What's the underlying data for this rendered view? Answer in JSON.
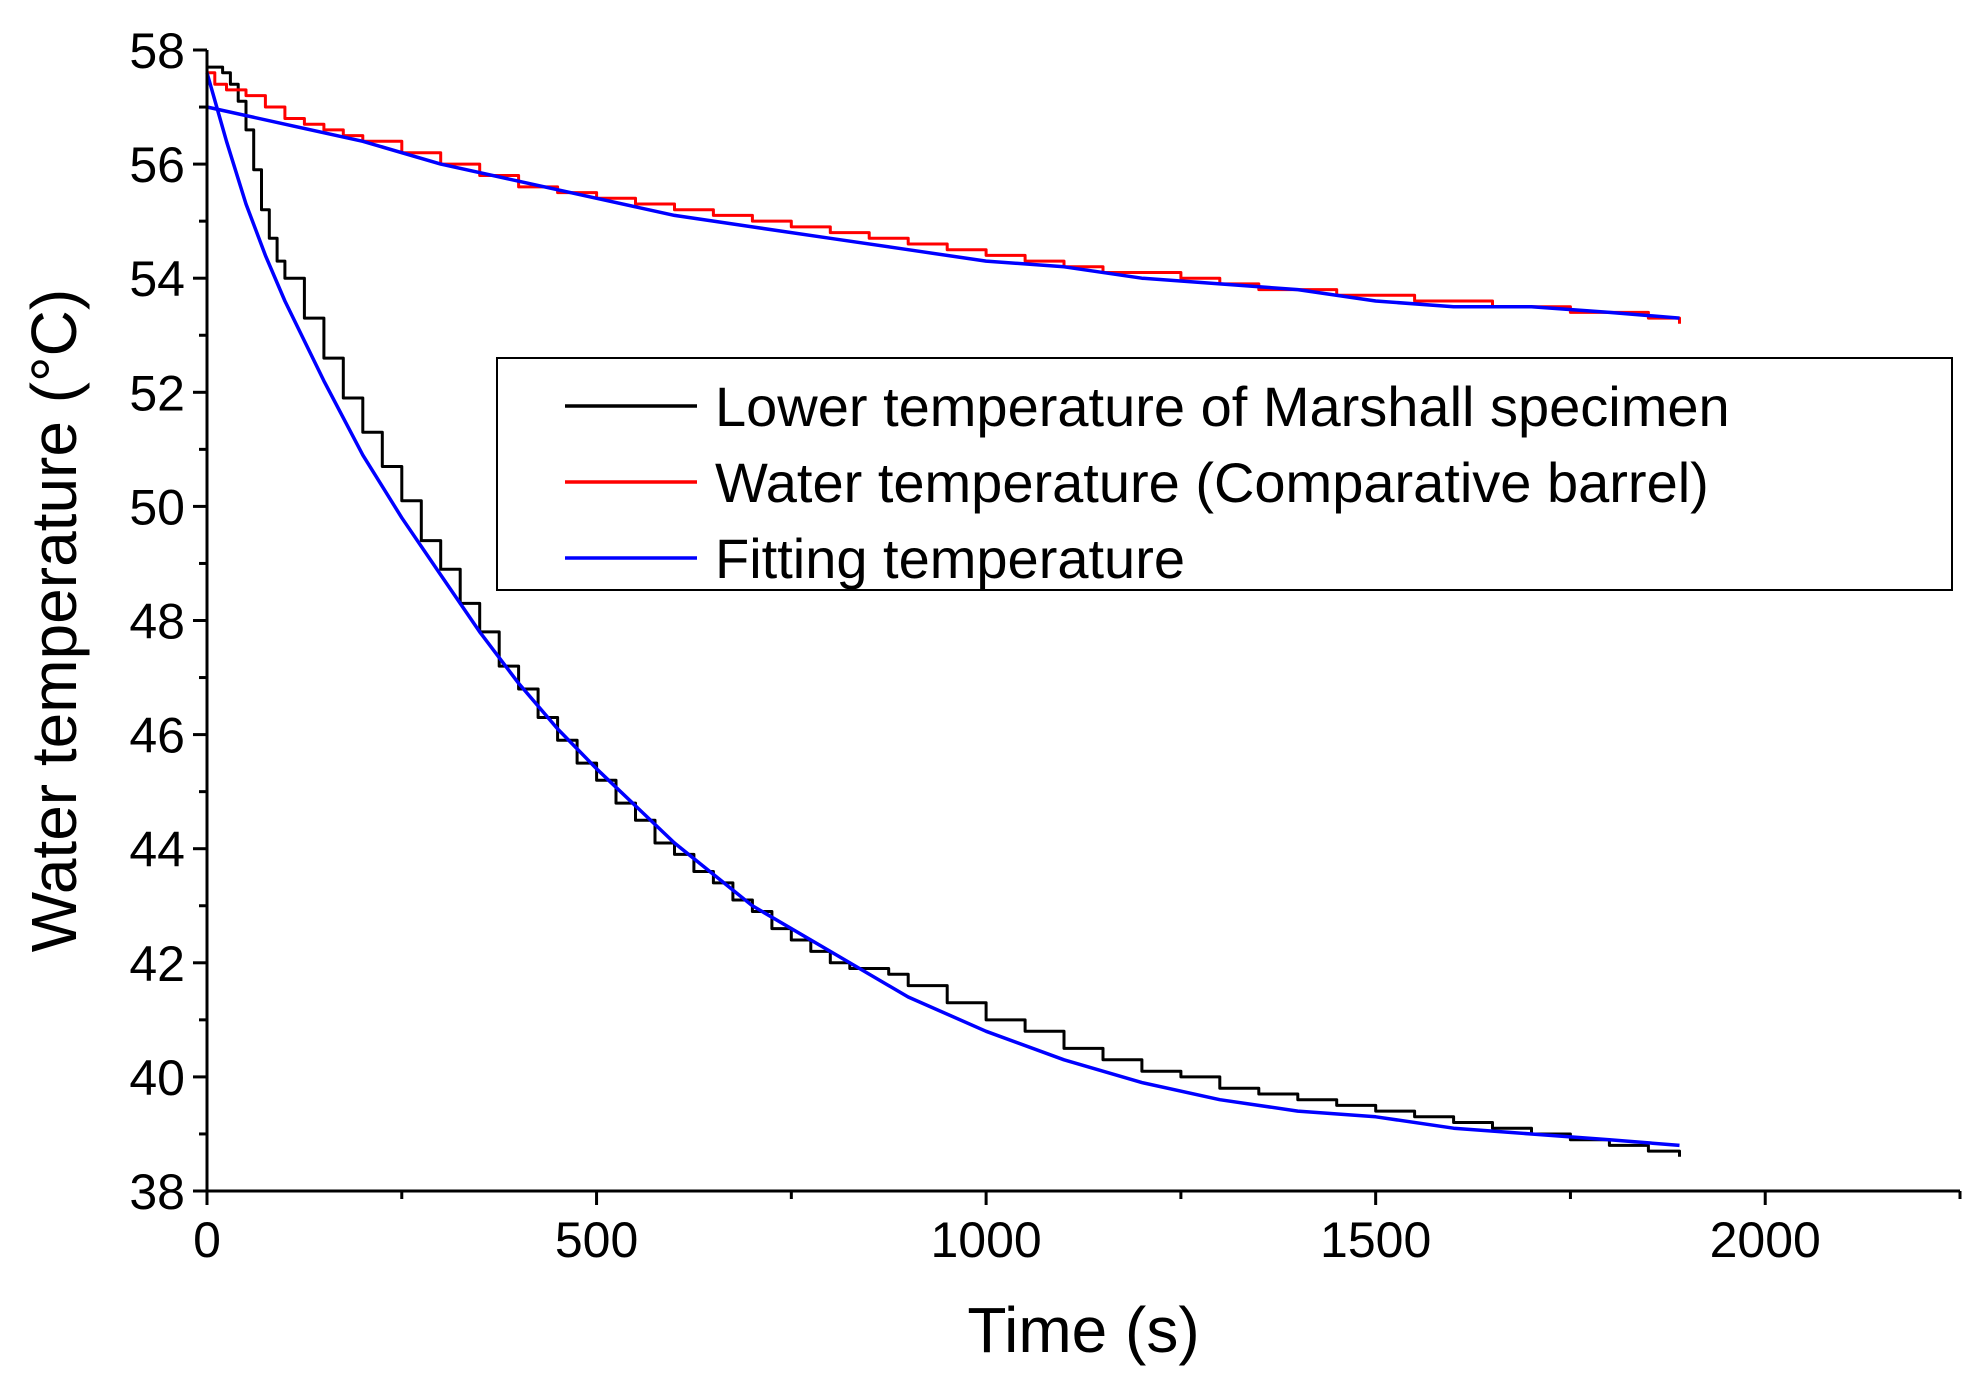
{
  "chart_data": {
    "type": "line",
    "title": "",
    "xlabel": "Time (s)",
    "ylabel": "Water temperature (°C)",
    "xlim": [
      0,
      2250
    ],
    "ylim": [
      38,
      58
    ],
    "x_ticks": [
      0,
      500,
      1000,
      1500,
      2000
    ],
    "x_tick_labels": [
      "0",
      "500",
      "1000",
      "1500",
      "2000"
    ],
    "x_minor_step": 250,
    "y_ticks": [
      38,
      40,
      42,
      44,
      46,
      48,
      50,
      52,
      54,
      56,
      58
    ],
    "y_tick_labels": [
      "38",
      "40",
      "42",
      "44",
      "46",
      "48",
      "50",
      "52",
      "54",
      "56",
      "58"
    ],
    "y_minor_step": 1,
    "grid": false,
    "legend_position": "center-right",
    "colors": {
      "lower": "#000000",
      "water": "#ff0000",
      "fitting": "#0000ff"
    },
    "series": [
      {
        "name": "Lower temperature of Marshall specimen",
        "color": "#000000",
        "step": true,
        "x": [
          0,
          10,
          20,
          30,
          40,
          50,
          60,
          70,
          80,
          90,
          100,
          125,
          150,
          175,
          200,
          225,
          250,
          275,
          300,
          325,
          350,
          375,
          400,
          425,
          450,
          475,
          500,
          525,
          550,
          575,
          600,
          625,
          650,
          675,
          700,
          725,
          750,
          775,
          800,
          825,
          850,
          875,
          900,
          950,
          1000,
          1050,
          1100,
          1150,
          1200,
          1250,
          1300,
          1350,
          1400,
          1450,
          1500,
          1550,
          1600,
          1650,
          1700,
          1750,
          1800,
          1850,
          1890
        ],
        "y": [
          57.7,
          57.7,
          57.6,
          57.4,
          57.1,
          56.6,
          55.9,
          55.2,
          54.7,
          54.3,
          54.0,
          53.3,
          52.6,
          51.9,
          51.3,
          50.7,
          50.1,
          49.4,
          48.9,
          48.3,
          47.8,
          47.2,
          46.8,
          46.3,
          45.9,
          45.5,
          45.2,
          44.8,
          44.5,
          44.1,
          43.9,
          43.6,
          43.4,
          43.1,
          42.9,
          42.6,
          42.4,
          42.2,
          42.0,
          41.9,
          41.9,
          41.8,
          41.6,
          41.3,
          41.0,
          40.8,
          40.5,
          40.3,
          40.1,
          40.0,
          39.8,
          39.7,
          39.6,
          39.5,
          39.4,
          39.3,
          39.2,
          39.1,
          39.0,
          38.9,
          38.8,
          38.7,
          38.6
        ]
      },
      {
        "name": "Water temperature (Comparative barrel)",
        "color": "#ff0000",
        "step": true,
        "x": [
          0,
          10,
          25,
          50,
          75,
          100,
          125,
          150,
          175,
          200,
          250,
          300,
          350,
          400,
          450,
          500,
          550,
          600,
          650,
          700,
          750,
          800,
          850,
          900,
          950,
          1000,
          1050,
          1100,
          1150,
          1200,
          1250,
          1300,
          1350,
          1400,
          1450,
          1500,
          1550,
          1600,
          1650,
          1700,
          1750,
          1800,
          1850,
          1890
        ],
        "y": [
          57.6,
          57.4,
          57.3,
          57.2,
          57.0,
          56.8,
          56.7,
          56.6,
          56.5,
          56.4,
          56.2,
          56.0,
          55.8,
          55.6,
          55.5,
          55.4,
          55.3,
          55.2,
          55.1,
          55.0,
          54.9,
          54.8,
          54.7,
          54.6,
          54.5,
          54.4,
          54.3,
          54.2,
          54.1,
          54.1,
          54.0,
          53.9,
          53.8,
          53.8,
          53.7,
          53.7,
          53.6,
          53.6,
          53.5,
          53.5,
          53.4,
          53.4,
          53.3,
          53.2
        ]
      },
      {
        "name": "Fitting temperature",
        "color": "#0000ff",
        "step": false,
        "x": [
          0,
          25,
          50,
          75,
          100,
          150,
          200,
          250,
          300,
          350,
          400,
          450,
          500,
          600,
          700,
          800,
          900,
          1000,
          1100,
          1200,
          1300,
          1400,
          1500,
          1600,
          1700,
          1800,
          1890
        ],
        "y": [
          57.6,
          56.4,
          55.3,
          54.4,
          53.6,
          52.2,
          50.9,
          49.8,
          48.8,
          47.8,
          46.9,
          46.1,
          45.4,
          44.1,
          43.0,
          42.2,
          41.4,
          40.8,
          40.3,
          39.9,
          39.6,
          39.4,
          39.3,
          39.1,
          39.0,
          38.9,
          38.8
        ]
      },
      {
        "name": "Fitting temperature",
        "color": "#0000ff",
        "step": false,
        "x": [
          0,
          100,
          200,
          300,
          400,
          500,
          600,
          700,
          800,
          900,
          1000,
          1100,
          1200,
          1300,
          1400,
          1500,
          1600,
          1700,
          1800,
          1890
        ],
        "y": [
          57.0,
          56.7,
          56.4,
          56.0,
          55.7,
          55.4,
          55.1,
          54.9,
          54.7,
          54.5,
          54.3,
          54.2,
          54.0,
          53.9,
          53.8,
          53.6,
          53.5,
          53.5,
          53.4,
          53.3
        ]
      }
    ],
    "legend": [
      {
        "label": "Lower temperature of Marshall specimen",
        "color": "#000000"
      },
      {
        "label": "Water temperature (Comparative barrel)",
        "color": "#ff0000"
      },
      {
        "label": "Fitting temperature",
        "color": "#0000ff"
      }
    ]
  }
}
